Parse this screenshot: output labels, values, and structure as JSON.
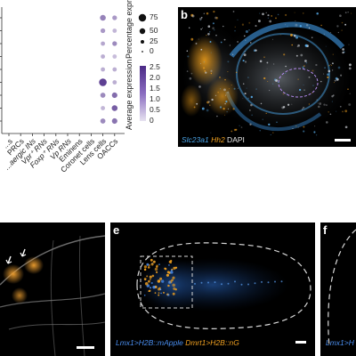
{
  "dotplot": {
    "categories": [
      "...s",
      "PRCs",
      "...aergic INs",
      "Vpr⁺ RNs",
      "Foxp⁺ RNs",
      "Vp RNs",
      "Eminens",
      "Coronet cells",
      "Lens cells",
      "OACCs"
    ],
    "size_legend": {
      "title": "Percentage expressed",
      "entries": [
        "75",
        "50",
        "25",
        "0"
      ]
    },
    "color_legend": {
      "title": "Average expression",
      "ticks": [
        "2.5",
        "2.0",
        "1.5",
        "1.0",
        "0.5",
        "0"
      ],
      "color_low": "#e7e2f0",
      "color_high": "#4b2a86"
    }
  },
  "panels": {
    "b": {
      "letter": "b",
      "caption_parts": [
        {
          "text": "Slc23a1",
          "color": "#4aa3e6"
        },
        {
          "text": " Hh2",
          "color": "#f0a020"
        },
        {
          "text": " DAPI",
          "color": "#e8e8e8"
        }
      ]
    },
    "e": {
      "letter": "e",
      "caption_parts": [
        {
          "text": "Lmx1>H2B::mApple",
          "color": "#4a8ef0"
        },
        {
          "text": " Dmrt1>H2B::nG",
          "color": "#f0a020"
        }
      ]
    },
    "f": {
      "letter": "f",
      "caption_parts": [
        {
          "text": "Lmx1>H",
          "color": "#4a8ef0"
        }
      ]
    }
  },
  "chart_data": {
    "type": "dotplot",
    "categories": [
      "...s",
      "PRCs",
      "...aergic INs",
      "Vpr⁺ RNs",
      "Foxp⁺ RNs",
      "Vp RNs",
      "Eminens",
      "Coronet cells",
      "Lens cells",
      "OACCs"
    ],
    "series": [
      {
        "name": "",
        "values": [
          null,
          null,
          null,
          null,
          null,
          null,
          null,
          null,
          {
            "pct": 35,
            "expr": 1.3
          },
          {
            "pct": 20,
            "expr": 1.0
          }
        ]
      },
      {
        "name": "",
        "values": [
          null,
          null,
          null,
          null,
          null,
          null,
          null,
          null,
          {
            "pct": 20,
            "expr": 1.0
          },
          {
            "pct": 15,
            "expr": 0.6
          }
        ]
      },
      {
        "name": "",
        "values": [
          null,
          null,
          null,
          null,
          null,
          null,
          null,
          null,
          {
            "pct": 15,
            "expr": 0.8
          },
          {
            "pct": 20,
            "expr": 1.2
          }
        ]
      },
      {
        "name": "",
        "values": [
          null,
          null,
          null,
          null,
          null,
          null,
          null,
          null,
          {
            "pct": 15,
            "expr": 0.7
          },
          {
            "pct": 15,
            "expr": 0.5
          }
        ]
      },
      {
        "name": "",
        "values": [
          null,
          null,
          null,
          null,
          null,
          null,
          null,
          null,
          {
            "pct": 15,
            "expr": 0.7
          },
          {
            "pct": 15,
            "expr": 0.7
          }
        ]
      },
      {
        "name": "",
        "values": [
          null,
          null,
          null,
          null,
          null,
          null,
          null,
          null,
          {
            "pct": 70,
            "expr": 2.2
          },
          {
            "pct": 15,
            "expr": 0.7
          }
        ]
      },
      {
        "name": "",
        "values": [
          null,
          null,
          null,
          null,
          null,
          null,
          null,
          null,
          {
            "pct": 25,
            "expr": 1.2
          },
          {
            "pct": 30,
            "expr": 1.6
          }
        ]
      },
      {
        "name": "",
        "values": [
          null,
          null,
          null,
          null,
          null,
          null,
          null,
          null,
          {
            "pct": 15,
            "expr": 0.6
          },
          {
            "pct": 35,
            "expr": 1.8
          }
        ]
      },
      {
        "name": "",
        "values": [
          null,
          null,
          null,
          null,
          null,
          null,
          null,
          null,
          {
            "pct": 25,
            "expr": 1.2
          },
          {
            "pct": 30,
            "expr": 1.5
          }
        ]
      }
    ]
  }
}
